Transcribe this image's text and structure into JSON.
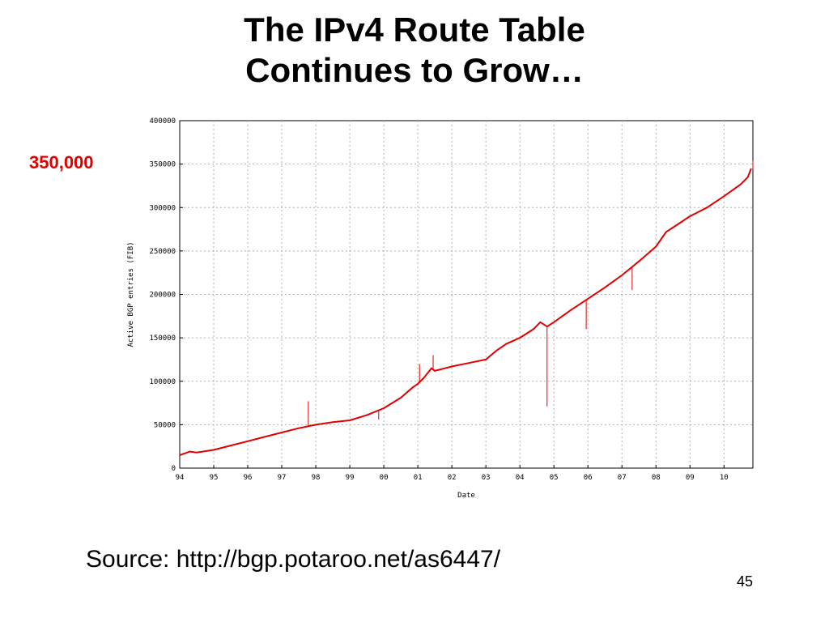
{
  "slide": {
    "title_line1": "The IPv4 Route Table",
    "title_line2": "Continues to Grow…",
    "callout": "350,000",
    "source": "Source: http://bgp.potaroo.net/as6447/",
    "page_number": "45"
  },
  "colors": {
    "series": "#e00000",
    "callout": "#e00000",
    "grid": "#b0b0b0",
    "axis": "#000000"
  },
  "chart_data": {
    "type": "line",
    "xlabel": "Date",
    "ylabel": "Active BGP entries (FIB)",
    "x_ticks": [
      "94",
      "95",
      "96",
      "97",
      "98",
      "99",
      "00",
      "01",
      "02",
      "03",
      "04",
      "05",
      "06",
      "07",
      "08",
      "09",
      "10"
    ],
    "y_ticks": [
      "0",
      "50000",
      "100000",
      "150000",
      "200000",
      "250000",
      "300000",
      "350000",
      "400000"
    ],
    "xlim": [
      1994.0,
      2010.85
    ],
    "ylim": [
      0,
      400000
    ],
    "grid": true,
    "series": [
      {
        "x": [
          1994.0,
          1994.3,
          1994.5,
          1995.0,
          1995.5,
          1996.0,
          1996.5,
          1997.0,
          1997.5,
          1998.0,
          1998.5,
          1999.0,
          1999.5,
          2000.0,
          2000.5,
          2000.85,
          2001.0,
          2001.2,
          2001.4,
          2001.5,
          2001.8,
          2002.0,
          2002.5,
          2003.0,
          2003.3,
          2003.6,
          2004.0,
          2004.4,
          2004.6,
          2004.8,
          2005.0,
          2005.5,
          2006.0,
          2006.5,
          2007.0,
          2007.5,
          2008.0,
          2008.3,
          2008.5,
          2009.0,
          2009.5,
          2010.0,
          2010.5,
          2010.7,
          2010.8
        ],
        "y": [
          15000,
          19000,
          18000,
          21000,
          26000,
          31000,
          36000,
          41000,
          46000,
          50000,
          53000,
          55000,
          61000,
          69000,
          81000,
          93000,
          97000,
          105000,
          115000,
          112000,
          115000,
          117000,
          121000,
          125000,
          135000,
          143000,
          150000,
          160000,
          168000,
          163000,
          168000,
          182000,
          195000,
          208000,
          222000,
          238000,
          255000,
          272000,
          277000,
          290000,
          300000,
          313000,
          327000,
          335000,
          345000
        ]
      }
    ],
    "spikes": [
      {
        "x": 1997.78,
        "y": 77000
      },
      {
        "x": 1999.85,
        "y": 56000
      },
      {
        "x": 2001.05,
        "y": 120000
      },
      {
        "x": 2001.45,
        "y": 130000
      },
      {
        "x": 2004.8,
        "y": 71000
      },
      {
        "x": 2005.95,
        "y": 160000
      },
      {
        "x": 2007.3,
        "y": 205000
      },
      {
        "x": 2010.85,
        "y": 354000
      }
    ]
  }
}
